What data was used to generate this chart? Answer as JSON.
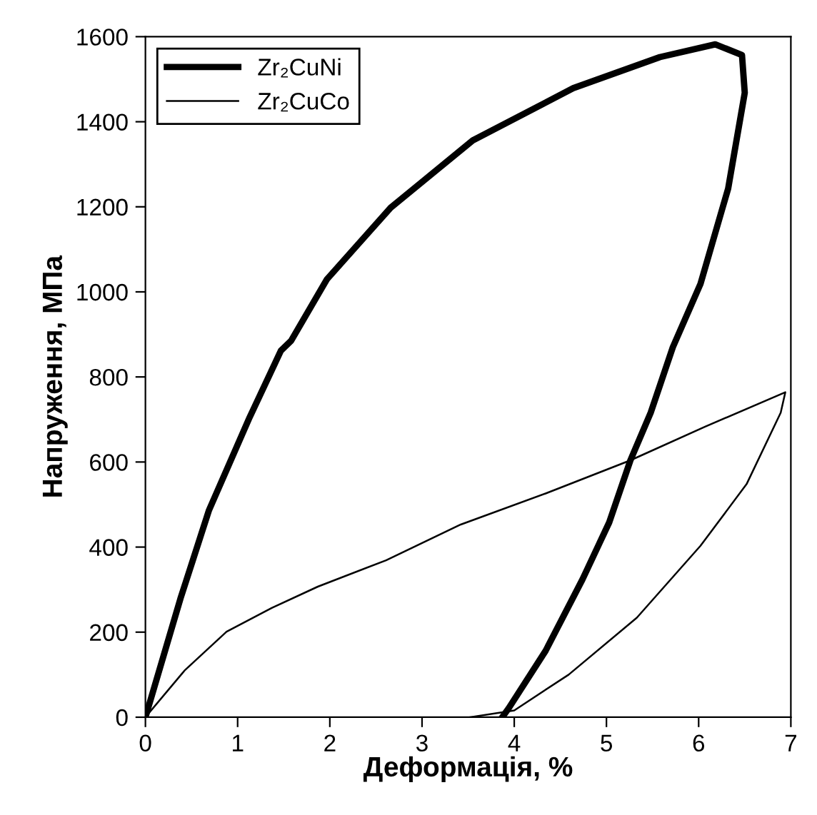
{
  "chart_data": {
    "type": "line",
    "xlabel": "Деформація, %",
    "ylabel": "Напруження, МПа",
    "xlim": [
      0,
      7
    ],
    "xticks": [
      0,
      1,
      2,
      3,
      4,
      5,
      6,
      7
    ],
    "ylim": [
      0,
      1600
    ],
    "yticks": [
      0,
      200,
      400,
      600,
      800,
      1000,
      1200,
      1400,
      1600
    ],
    "grid": false,
    "legend": "top left",
    "marker": "none",
    "line_style": "solid",
    "series": [
      {
        "name": "Zr₂CuNi",
        "color": "#000000",
        "x": [
          0,
          0.38,
          0.69,
          1.13,
          1.47,
          1.58,
          1.97,
          2.66,
          3.55,
          4.64,
          5.58,
          6.18,
          6.47,
          6.5,
          6.32,
          6.02,
          5.72,
          5.48,
          5.26,
          5.03,
          4.74,
          4.34,
          3.94,
          3.87
        ],
        "values": [
          0,
          279,
          487,
          705,
          862,
          885,
          1030,
          1198,
          1356,
          1479,
          1552,
          1582,
          1557,
          1468,
          1243,
          1019,
          870,
          716,
          604,
          458,
          324,
          156,
          21,
          0
        ]
      },
      {
        "name": "Zr₂CuCo",
        "color": "#000000",
        "x": [
          0,
          0.43,
          0.88,
          1.37,
          1.87,
          2.61,
          3.42,
          4.34,
          5.26,
          6.07,
          6.94,
          6.89,
          6.52,
          6.02,
          5.33,
          4.59,
          4.0,
          3.52
        ],
        "values": [
          0,
          111,
          201,
          257,
          307,
          369,
          453,
          526,
          604,
          683,
          764,
          716,
          548,
          403,
          234,
          100,
          16,
          0
        ]
      }
    ]
  }
}
